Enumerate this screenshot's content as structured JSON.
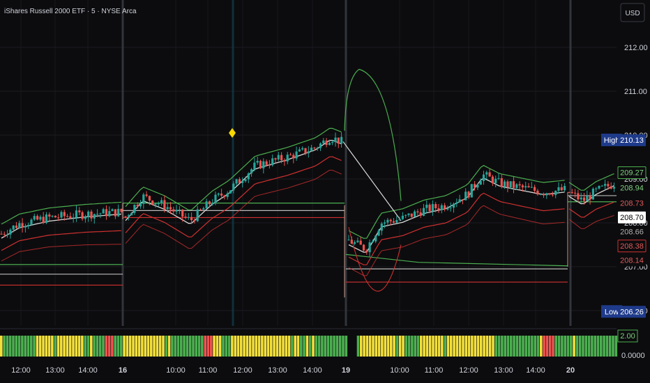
{
  "header": {
    "symbol_line": "iShares Russell 2000 ETF · 5 · NYSE Arca",
    "currency_button": "USD"
  },
  "chart_data": {
    "type": "candlestick",
    "title": "iShares Russell 2000 ETF · 5 · NYSE Arca",
    "interval": "5",
    "exchange": "NYSE Arca",
    "currency": "USD",
    "ylim": [
      205.8,
      212.5
    ],
    "y_ticks": [
      "212.00",
      "211.00",
      "210.00",
      "209.00",
      "208.00",
      "207.00",
      "206.00"
    ],
    "x_ticks": [
      "12:00",
      "13:00",
      "14:00",
      "16",
      "10:00",
      "11:00",
      "12:00",
      "13:00",
      "14:00",
      "19",
      "10:00",
      "11:00",
      "12:00",
      "13:00",
      "14:00",
      "20"
    ],
    "session_dividers": [
      "16",
      "19",
      "20"
    ],
    "price_labels": {
      "high": {
        "label": "High",
        "value": "210.13"
      },
      "low": {
        "label": "Low",
        "value": "206.26"
      },
      "upper_band_1": "209.27",
      "upper_band_2": "208.94",
      "lower_band_1": "208.73",
      "last_price": "208.70",
      "mid": "208.66",
      "lower_band_2": "208.38",
      "lower_band_3": "208.14"
    },
    "sessions": [
      {
        "name": "session-1",
        "open": 207.75,
        "close": 208.2,
        "high": 208.45,
        "low": 207.35
      },
      {
        "name": "session-16",
        "open": 208.1,
        "close": 209.72,
        "high": 210.13,
        "low": 207.9
      },
      {
        "name": "session-19",
        "open": 207.5,
        "close": 208.4,
        "high": 208.65,
        "low": 207.05
      },
      {
        "name": "session-20",
        "open": 208.5,
        "close": 208.75,
        "high": 208.95,
        "low": 208.3
      }
    ],
    "marker": {
      "type": "diamond",
      "color": "#f5d800"
    },
    "indicator": {
      "name": "volume-ratio",
      "last_value": "2.00",
      "zero_label": "0.0000",
      "colors": {
        "high": "#4caf50",
        "mid": "#f3e03b",
        "low": "#ef5350"
      }
    },
    "colors": {
      "up": "#26a69a",
      "down": "#ef5350",
      "vwap": "#d9d9d9",
      "upper_band": "#4caf50",
      "lower_band": "#d03030",
      "high_box": "#1e3a8a"
    }
  }
}
